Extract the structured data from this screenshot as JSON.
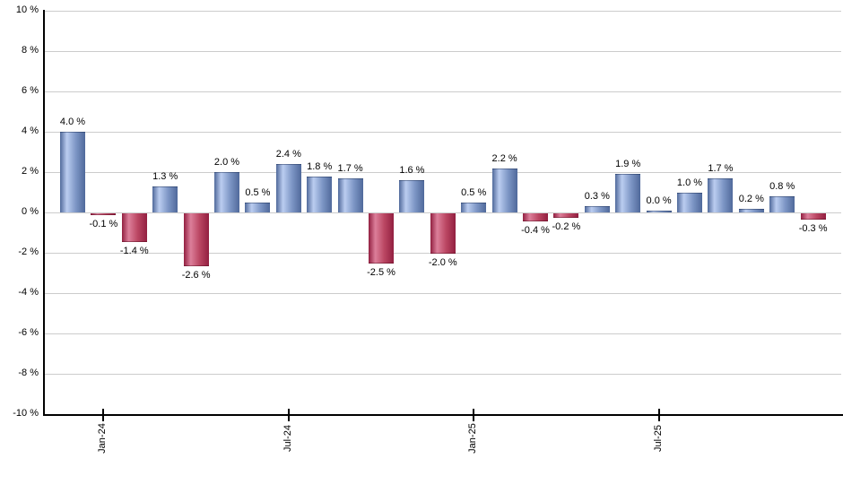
{
  "chart_data": {
    "type": "bar",
    "title": "",
    "ylabel": "",
    "unit": "%",
    "ylim": [
      -10,
      10
    ],
    "y_tick_step": 2,
    "grid": true,
    "legend": "none",
    "y_tick_labels": [
      "10 %",
      "8 %",
      "6 %",
      "4 %",
      "2 %",
      "0 %",
      "-2 %",
      "-4 %",
      "-6 %",
      "-8 %",
      "-10 %"
    ],
    "bars": [
      {
        "value": 4.0,
        "label": "4.0 %"
      },
      {
        "value": -0.1,
        "label": "-0.1 %"
      },
      {
        "value": -1.4,
        "label": "-1.4 %"
      },
      {
        "value": 1.3,
        "label": "1.3 %"
      },
      {
        "value": -2.6,
        "label": "-2.6 %"
      },
      {
        "value": 2.0,
        "label": "2.0 %"
      },
      {
        "value": 0.5,
        "label": "0.5 %"
      },
      {
        "value": 2.4,
        "label": "2.4 %"
      },
      {
        "value": 1.8,
        "label": "1.8 %"
      },
      {
        "value": 1.7,
        "label": "1.7 %"
      },
      {
        "value": -2.5,
        "label": "-2.5 %"
      },
      {
        "value": 1.6,
        "label": "1.6 %"
      },
      {
        "value": -2.0,
        "label": "-2.0 %"
      },
      {
        "value": 0.5,
        "label": "0.5 %"
      },
      {
        "value": 2.2,
        "label": "2.2 %"
      },
      {
        "value": -0.4,
        "label": "-0.4 %"
      },
      {
        "value": -0.2,
        "label": "-0.2 %"
      },
      {
        "value": 0.3,
        "label": "0.3 %"
      },
      {
        "value": 1.9,
        "label": "1.9 %"
      },
      {
        "value": 0.0,
        "label": "0.0 %"
      },
      {
        "value": 1.0,
        "label": "1.0 %"
      },
      {
        "value": 1.7,
        "label": "1.7 %"
      },
      {
        "value": 0.2,
        "label": "0.2 %"
      },
      {
        "value": 0.8,
        "label": "0.8 %"
      },
      {
        "value": -0.3,
        "label": "-0.3 %"
      }
    ],
    "x_ticks": [
      {
        "label": "Jan-24",
        "bar_index": 1
      },
      {
        "label": "Jul-24",
        "bar_index": 7
      },
      {
        "label": "Jan-25",
        "bar_index": 13
      },
      {
        "label": "Jul-25",
        "bar_index": 19
      }
    ],
    "colors": {
      "positive_dark": "#50699b",
      "positive_mid": "#7e97c6",
      "positive_light": "#bbcdf0",
      "negative_dark": "#921f40",
      "negative_mid": "#bb4763",
      "negative_light": "#dc7f9a",
      "gridline": "#cccccc",
      "axis": "#000000",
      "text": "#000000"
    }
  }
}
